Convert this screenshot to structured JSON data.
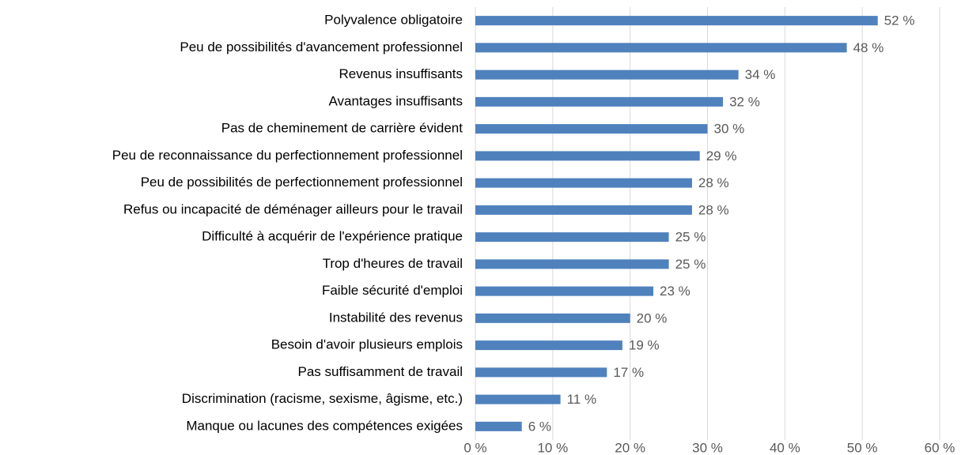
{
  "chart_data": {
    "type": "bar",
    "orientation": "horizontal",
    "categories": [
      "Polyvalence obligatoire",
      "Peu de possibilités d'avancement professionnel",
      "Revenus insuffisants",
      "Avantages insuffisants",
      "Pas de cheminement de carrière évident",
      "Peu de reconnaissance du perfectionnement professionnel",
      "Peu de possibilités de perfectionnement professionnel",
      "Refus ou incapacité de déménager ailleurs pour le travail",
      "Difficulté à acquérir de l'expérience pratique",
      "Trop d'heures de travail",
      "Faible sécurité d'emploi",
      "Instabilité des revenus",
      "Besoin d'avoir plusieurs emplois",
      "Pas suffisamment de travail",
      "Discrimination (racisme, sexisme, âgisme, etc.)",
      "Manque ou lacunes des compétences exigées"
    ],
    "values": [
      52,
      48,
      34,
      32,
      30,
      29,
      28,
      28,
      25,
      25,
      23,
      20,
      19,
      17,
      11,
      6
    ],
    "value_labels": [
      "52 %",
      "48 %",
      "34 %",
      "32 %",
      "30 %",
      "29 %",
      "28 %",
      "28 %",
      "25 %",
      "25 %",
      "23 %",
      "20 %",
      "19 %",
      "17 %",
      "11 %",
      "6 %"
    ],
    "color": "#4f81bd",
    "xlim": [
      0,
      60
    ],
    "xticks": [
      {
        "value": 0,
        "label": "0 %"
      },
      {
        "value": 10,
        "label": "10 %"
      },
      {
        "value": 20,
        "label": "20 %"
      },
      {
        "value": 30,
        "label": "30 %"
      },
      {
        "value": 40,
        "label": "40 %"
      },
      {
        "value": 50,
        "label": "50 %"
      },
      {
        "value": 60,
        "label": "60 %"
      }
    ],
    "grid": true
  }
}
